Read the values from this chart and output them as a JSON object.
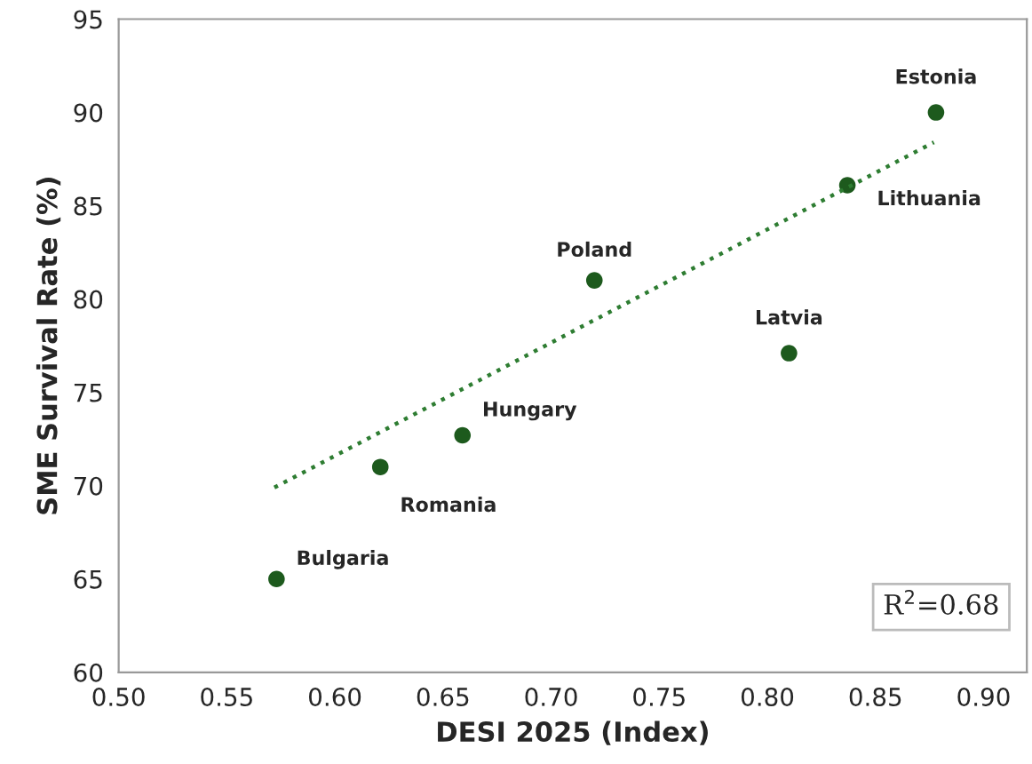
{
  "chart_data": {
    "type": "scatter",
    "xlabel": "DESI 2025 (Index)",
    "ylabel": "SME Survival Rate (%)",
    "xlim": [
      0.5,
      0.92
    ],
    "ylim": [
      60,
      95
    ],
    "xticks": [
      {
        "value": 0.5,
        "label": "0.50"
      },
      {
        "value": 0.55,
        "label": "0.55"
      },
      {
        "value": 0.6,
        "label": "0.60"
      },
      {
        "value": 0.65,
        "label": "0.65"
      },
      {
        "value": 0.7,
        "label": "0.70"
      },
      {
        "value": 0.75,
        "label": "0.75"
      },
      {
        "value": 0.8,
        "label": "0.80"
      },
      {
        "value": 0.85,
        "label": "0.85"
      },
      {
        "value": 0.9,
        "label": "0.90"
      }
    ],
    "yticks": [
      60,
      65,
      70,
      75,
      80,
      85,
      90,
      95
    ],
    "grid": false,
    "series": [
      {
        "marker": "circle",
        "color": "#1d5a1d",
        "x": [
          0.573,
          0.621,
          0.659,
          0.72,
          0.81,
          0.837,
          0.878
        ],
        "values": [
          65,
          71,
          72.7,
          81,
          77.1,
          86.1,
          90
        ]
      },
      {
        "type": "line",
        "color": "#2e7d32",
        "line_style": "dotted",
        "x": [
          0.572,
          0.877
        ],
        "values": [
          69.9,
          88.4
        ]
      }
    ],
    "annotations": [
      {
        "text": "Bulgaria",
        "x": 0.573,
        "y": 65
      },
      {
        "text": "Romania",
        "x": 0.621,
        "y": 71
      },
      {
        "text": "Hungary",
        "x": 0.659,
        "y": 72.7
      },
      {
        "text": "Poland",
        "x": 0.72,
        "y": 81
      },
      {
        "text": "Latvia",
        "x": 0.81,
        "y": 77.1
      },
      {
        "text": "Lithuania",
        "x": 0.837,
        "y": 86.1
      },
      {
        "text": "Estonia",
        "x": 0.878,
        "y": 90
      },
      "R$^{2}$=0.68"
    ]
  }
}
